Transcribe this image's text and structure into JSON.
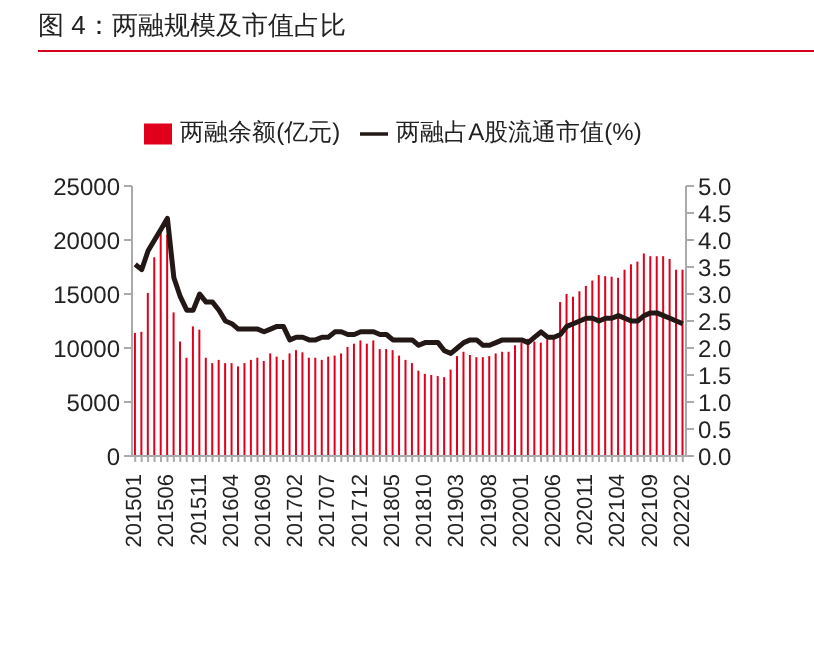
{
  "chart_data": {
    "type": "bar",
    "title": "图 4：两融规模及市值占比",
    "categories": [
      "201501",
      null,
      null,
      null,
      null,
      "201506",
      null,
      null,
      null,
      null,
      "201511",
      null,
      null,
      null,
      null,
      "201604",
      null,
      null,
      null,
      null,
      "201609",
      null,
      null,
      null,
      null,
      "201702",
      null,
      null,
      null,
      null,
      "201707",
      null,
      null,
      null,
      null,
      "201712",
      null,
      null,
      null,
      null,
      "201805",
      null,
      null,
      null,
      null,
      "201810",
      null,
      null,
      null,
      null,
      "201903",
      null,
      null,
      null,
      null,
      "201908",
      null,
      null,
      null,
      null,
      "202001",
      null,
      null,
      null,
      null,
      "202006",
      null,
      null,
      null,
      null,
      "202011",
      null,
      null,
      null,
      null,
      "202104",
      null,
      null,
      null,
      null,
      "202109",
      null,
      null,
      null,
      null,
      "202202"
    ],
    "series": [
      {
        "name": "两融余额(亿元)",
        "color": "#e0001b",
        "values": [
          11400,
          11500,
          15100,
          18400,
          20700,
          20500,
          13300,
          10600,
          9100,
          12000,
          11700,
          9100,
          8600,
          8900,
          8600,
          8600,
          8300,
          8600,
          8900,
          9100,
          8800,
          9500,
          9200,
          8900,
          9500,
          9800,
          9600,
          9100,
          9100,
          8900,
          9200,
          9300,
          9500,
          10100,
          10400,
          10700,
          10400,
          10700,
          9900,
          9900,
          9800,
          9300,
          8900,
          8600,
          7900,
          7600,
          7500,
          7400,
          7300,
          8000,
          9250,
          9650,
          9350,
          9150,
          9150,
          9250,
          9500,
          9650,
          9650,
          10250,
          10500,
          10850,
          10600,
          10500,
          10800,
          11000,
          14250,
          15000,
          14750,
          15250,
          15750,
          16250,
          16750,
          16650,
          16600,
          16500,
          17250,
          17750,
          18000,
          18750,
          18500,
          18500,
          18500,
          18250,
          17250,
          17250
        ]
      },
      {
        "name": "两融占A股流通市值(%)",
        "type": "line",
        "axis": "y2",
        "color": "#231815",
        "values": [
          3.55,
          3.45,
          3.8,
          4.0,
          4.2,
          4.4,
          3.3,
          2.95,
          2.7,
          2.7,
          3.0,
          2.85,
          2.85,
          2.7,
          2.5,
          2.45,
          2.35,
          2.35,
          2.35,
          2.35,
          2.3,
          2.35,
          2.4,
          2.4,
          2.15,
          2.2,
          2.2,
          2.15,
          2.15,
          2.2,
          2.2,
          2.3,
          2.3,
          2.25,
          2.25,
          2.3,
          2.3,
          2.3,
          2.25,
          2.25,
          2.15,
          2.15,
          2.15,
          2.15,
          2.05,
          2.1,
          2.1,
          2.1,
          1.95,
          1.9,
          2.0,
          2.1,
          2.15,
          2.15,
          2.05,
          2.05,
          2.1,
          2.15,
          2.15,
          2.15,
          2.15,
          2.1,
          2.2,
          2.3,
          2.2,
          2.2,
          2.25,
          2.4,
          2.45,
          2.5,
          2.55,
          2.55,
          2.5,
          2.55,
          2.55,
          2.6,
          2.55,
          2.5,
          2.5,
          2.6,
          2.65,
          2.65,
          2.6,
          2.55,
          2.5,
          2.45
        ]
      }
    ],
    "ylim": [
      0,
      25000
    ],
    "yticks": [
      0,
      5000,
      10000,
      15000,
      20000,
      25000
    ],
    "y2lim": [
      0,
      5
    ],
    "y2ticks": [
      {
        "value": 0,
        "label": "0.0"
      },
      {
        "value": 0.5,
        "label": "0.5"
      },
      {
        "value": 1,
        "label": "1.0"
      },
      {
        "value": 1.5,
        "label": "1.5"
      },
      {
        "value": 2,
        "label": "2.0"
      },
      {
        "value": 2.5,
        "label": "2.5"
      },
      {
        "value": 3,
        "label": "3.0"
      },
      {
        "value": 3.5,
        "label": "3.5"
      },
      {
        "value": 4,
        "label": "4.0"
      },
      {
        "value": 4.5,
        "label": "4.5"
      },
      {
        "value": 5,
        "label": "5.0"
      }
    ],
    "legend": "top",
    "grid": false
  }
}
